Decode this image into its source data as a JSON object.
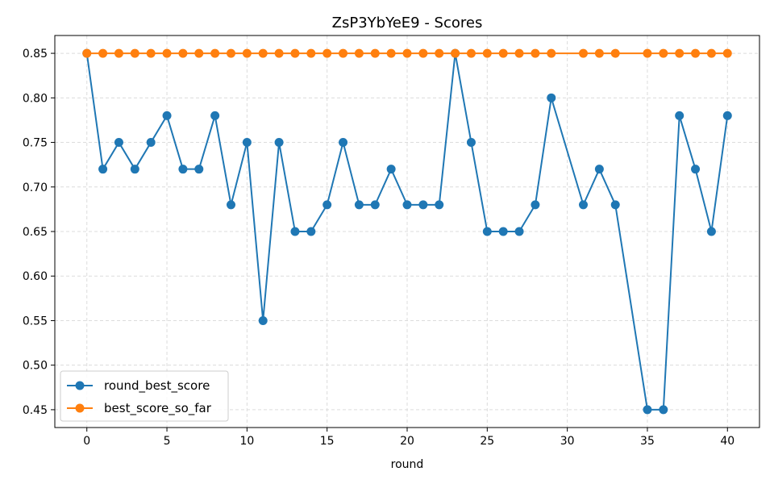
{
  "chart_data": {
    "type": "line",
    "title": "ZsP3YbYeE9 - Scores",
    "xlabel": "round",
    "ylabel": "",
    "xlim": [
      -2,
      42
    ],
    "ylim": [
      0.43,
      0.87
    ],
    "xticks": [
      0,
      5,
      10,
      15,
      20,
      25,
      30,
      35,
      40
    ],
    "yticks": [
      0.45,
      0.5,
      0.55,
      0.6,
      0.65,
      0.7,
      0.75,
      0.8,
      0.85
    ],
    "grid": true,
    "legend_position": "bottom-left",
    "series": [
      {
        "name": "round_best_score",
        "color": "#1f77b4",
        "x": [
          0,
          1,
          2,
          3,
          4,
          5,
          6,
          7,
          8,
          9,
          10,
          11,
          12,
          13,
          14,
          15,
          16,
          17,
          18,
          19,
          20,
          21,
          22,
          23,
          24,
          25,
          26,
          27,
          28,
          29,
          31,
          32,
          33,
          35,
          36,
          37,
          38,
          39,
          40
        ],
        "values": [
          0.85,
          0.72,
          0.75,
          0.72,
          0.75,
          0.78,
          0.72,
          0.72,
          0.78,
          0.68,
          0.75,
          0.55,
          0.75,
          0.65,
          0.65,
          0.68,
          0.75,
          0.68,
          0.68,
          0.72,
          0.68,
          0.68,
          0.68,
          0.85,
          0.75,
          0.65,
          0.65,
          0.65,
          0.68,
          0.8,
          0.68,
          0.72,
          0.68,
          0.45,
          0.45,
          0.78,
          0.72,
          0.65,
          0.78
        ]
      },
      {
        "name": "best_score_so_far",
        "color": "#ff7f0e",
        "x": [
          0,
          1,
          2,
          3,
          4,
          5,
          6,
          7,
          8,
          9,
          10,
          11,
          12,
          13,
          14,
          15,
          16,
          17,
          18,
          19,
          20,
          21,
          22,
          23,
          24,
          25,
          26,
          27,
          28,
          29,
          31,
          32,
          33,
          35,
          36,
          37,
          38,
          39,
          40
        ],
        "values": [
          0.85,
          0.85,
          0.85,
          0.85,
          0.85,
          0.85,
          0.85,
          0.85,
          0.85,
          0.85,
          0.85,
          0.85,
          0.85,
          0.85,
          0.85,
          0.85,
          0.85,
          0.85,
          0.85,
          0.85,
          0.85,
          0.85,
          0.85,
          0.85,
          0.85,
          0.85,
          0.85,
          0.85,
          0.85,
          0.85,
          0.85,
          0.85,
          0.85,
          0.85,
          0.85,
          0.85,
          0.85,
          0.85,
          0.85
        ]
      }
    ]
  }
}
